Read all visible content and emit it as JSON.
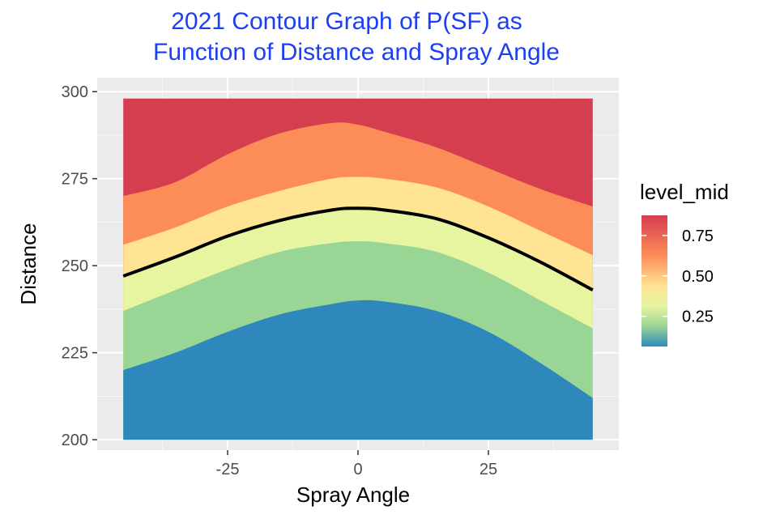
{
  "chart_data": {
    "type": "area",
    "title_lines": [
      "2021 Contour Graph of P(SF) as",
      "Function of Distance and Spray Angle"
    ],
    "xlabel": "Spray Angle",
    "ylabel": "Distance",
    "xlim": [
      -50,
      50
    ],
    "ylim": [
      197,
      304
    ],
    "x_ticks": [
      {
        "value": -25,
        "label": "-25"
      },
      {
        "value": 0,
        "label": "0"
      },
      {
        "value": 25,
        "label": "25"
      }
    ],
    "y_ticks": [
      {
        "value": 200,
        "label": "200"
      },
      {
        "value": 225,
        "label": "225"
      },
      {
        "value": 250,
        "label": "250"
      },
      {
        "value": 275,
        "label": "275"
      },
      {
        "value": 300,
        "label": "300"
      }
    ],
    "grid": true,
    "domain": {
      "x": [
        -45,
        45
      ],
      "y": [
        200,
        298
      ]
    },
    "x": [
      -45,
      -35,
      -25,
      -15,
      -5,
      0,
      5,
      15,
      25,
      35,
      45
    ],
    "bands": [
      {
        "level_mid": 0.0625,
        "color": "#2E88BB",
        "upper": [
          220,
          225,
          231,
          236,
          239,
          240,
          239.7,
          237,
          231,
          222,
          212
        ]
      },
      {
        "level_mid": 0.1875,
        "color": "#99D595",
        "upper": [
          237,
          243,
          249,
          254,
          256.5,
          257,
          256.5,
          254,
          248,
          240,
          232
        ]
      },
      {
        "level_mid": 0.3125,
        "color": "#E7F5A0",
        "upper": [
          247,
          252.5,
          258.5,
          263,
          266,
          266.5,
          266,
          263.5,
          258,
          251,
          243
        ]
      },
      {
        "level_mid": 0.4375,
        "color": "#FEE493",
        "upper": [
          256,
          261,
          267,
          271.5,
          275,
          275.5,
          275,
          272.5,
          267,
          260,
          253
        ]
      },
      {
        "level_mid": 0.625,
        "color": "#FC8D59",
        "upper": [
          270,
          274,
          282,
          288,
          291,
          290.5,
          288.5,
          284,
          278,
          272,
          267
        ]
      },
      {
        "level_mid": 0.875,
        "color": "#D53E4F",
        "upper": [
          298,
          298,
          298,
          298,
          298,
          298,
          298,
          298,
          298,
          298,
          298
        ]
      }
    ],
    "contour_line": {
      "color": "#000000",
      "y": [
        247,
        252.5,
        258.5,
        263,
        266,
        266.5,
        266,
        263.5,
        258,
        251,
        243
      ]
    },
    "legend": {
      "title": "level_mid",
      "position": "right",
      "labels": [
        {
          "value": 0.75,
          "label": "0.75"
        },
        {
          "value": 0.5,
          "label": "0.50"
        },
        {
          "value": 0.25,
          "label": "0.25"
        }
      ],
      "range": [
        0.0625,
        0.875
      ],
      "stops": [
        {
          "value": 0.0625,
          "color": "#2E88BB"
        },
        {
          "value": 0.1875,
          "color": "#99D595"
        },
        {
          "value": 0.3125,
          "color": "#E7F5A0"
        },
        {
          "value": 0.4375,
          "color": "#FEE493"
        },
        {
          "value": 0.625,
          "color": "#FC8D59"
        },
        {
          "value": 0.875,
          "color": "#D53E4F"
        }
      ]
    },
    "colors": {
      "title": "#1C3FF5",
      "panel": "#EBEBEB",
      "grid_major": "#FFFFFF",
      "tick_text": "#4D4D4D",
      "tick_mark": "#333333"
    }
  }
}
